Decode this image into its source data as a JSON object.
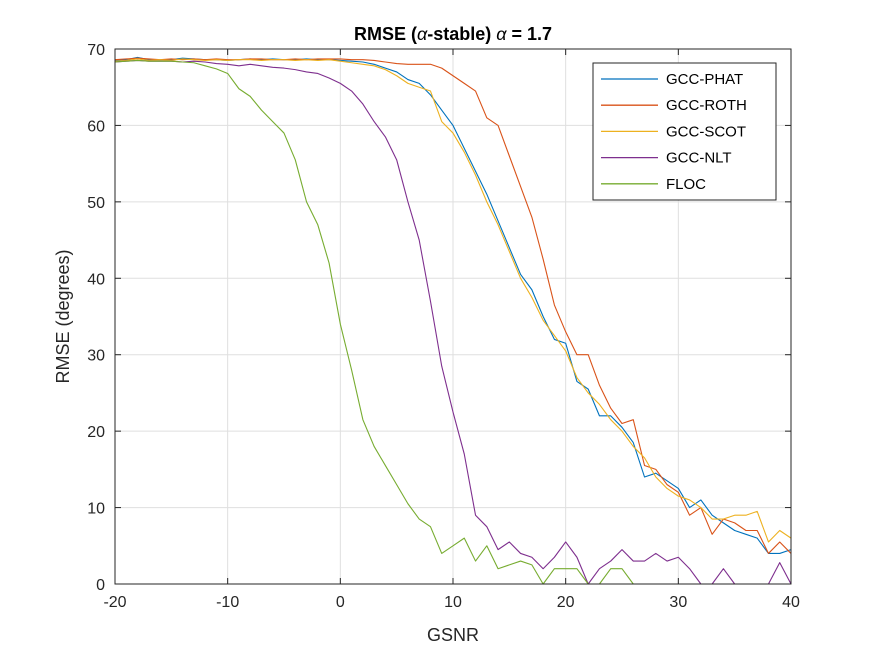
{
  "chart_data": {
    "type": "line",
    "title_prefix": "RMSE (",
    "title_symbol": "α",
    "title_mid": "-stable) ",
    "title_symbol2": "α",
    "title_suffix": " = 1.7",
    "xlabel": "GSNR",
    "ylabel": "RMSE (degrees)",
    "xlim": [
      -20,
      40
    ],
    "ylim": [
      0,
      70
    ],
    "xticks": [
      -20,
      -10,
      0,
      10,
      20,
      30,
      40
    ],
    "yticks": [
      0,
      10,
      20,
      30,
      40,
      50,
      60,
      70
    ],
    "grid": true,
    "legend_position": "top-right",
    "x": [
      -20,
      -19,
      -18,
      -17,
      -16,
      -15,
      -14,
      -13,
      -12,
      -11,
      -10,
      -9,
      -8,
      -7,
      -6,
      -5,
      -4,
      -3,
      -2,
      -1,
      0,
      1,
      2,
      3,
      4,
      5,
      6,
      7,
      8,
      9,
      10,
      11,
      12,
      13,
      14,
      15,
      16,
      17,
      18,
      19,
      20,
      21,
      22,
      23,
      24,
      25,
      26,
      27,
      28,
      29,
      30,
      31,
      32,
      33,
      34,
      35,
      36,
      37,
      38,
      39,
      40
    ],
    "series": [
      {
        "name": "GCC-PHAT",
        "color": "#0072BD",
        "values": [
          68.5,
          68.6,
          68.9,
          68.6,
          68.6,
          68.6,
          68.8,
          68.7,
          68.6,
          68.6,
          68.5,
          68.6,
          68.7,
          68.6,
          68.7,
          68.6,
          68.6,
          68.7,
          68.6,
          68.6,
          68.5,
          68.4,
          68.3,
          68.0,
          67.5,
          67.0,
          66.0,
          65.5,
          64.0,
          62.0,
          60.0,
          57.0,
          54.0,
          51.0,
          47.5,
          44.0,
          40.5,
          38.5,
          35.0,
          32.0,
          31.5,
          26.5,
          25.5,
          22.0,
          22.0,
          20.5,
          18.5,
          14.0,
          14.5,
          13.5,
          12.5,
          10.0,
          11.0,
          9.0,
          8.0,
          7.0,
          6.5,
          6.0,
          4.0,
          4.0,
          4.5
        ]
      },
      {
        "name": "GCC-ROTH",
        "color": "#D95319",
        "values": [
          68.6,
          68.7,
          68.8,
          68.7,
          68.6,
          68.7,
          68.6,
          68.7,
          68.6,
          68.7,
          68.6,
          68.6,
          68.7,
          68.7,
          68.6,
          68.6,
          68.7,
          68.6,
          68.7,
          68.7,
          68.7,
          68.6,
          68.6,
          68.5,
          68.3,
          68.1,
          68.0,
          68.0,
          68.0,
          67.5,
          66.5,
          65.5,
          64.5,
          61.0,
          60.0,
          56.0,
          52.0,
          48.0,
          42.5,
          36.5,
          33.0,
          30.0,
          30.0,
          26.0,
          23.0,
          21.0,
          21.5,
          15.5,
          15.0,
          13.0,
          12.0,
          9.0,
          10.0,
          6.5,
          8.5,
          8.0,
          7.0,
          7.0,
          4.0,
          5.5,
          4.0
        ]
      },
      {
        "name": "GCC-SCOT",
        "color": "#EDB120",
        "values": [
          68.4,
          68.5,
          68.7,
          68.5,
          68.6,
          68.5,
          68.7,
          68.6,
          68.5,
          68.6,
          68.5,
          68.6,
          68.6,
          68.5,
          68.6,
          68.6,
          68.5,
          68.6,
          68.5,
          68.6,
          68.4,
          68.2,
          68.0,
          67.8,
          67.3,
          66.5,
          65.5,
          65.0,
          64.5,
          60.5,
          59.0,
          56.5,
          53.5,
          50.0,
          47.0,
          43.5,
          40.0,
          37.5,
          34.5,
          32.5,
          30.5,
          27.0,
          25.0,
          23.5,
          21.5,
          20.0,
          18.0,
          16.5,
          14.0,
          12.5,
          11.5,
          11.0,
          10.0,
          8.5,
          8.5,
          9.0,
          9.0,
          9.5,
          5.5,
          7.0,
          6.0
        ]
      },
      {
        "name": "GCC-NLT",
        "color": "#7E2F8E",
        "values": [
          68.3,
          68.4,
          68.5,
          68.4,
          68.4,
          68.4,
          68.3,
          68.4,
          68.3,
          68.1,
          68.0,
          67.8,
          68.0,
          67.8,
          67.6,
          67.5,
          67.3,
          67.0,
          66.8,
          66.2,
          65.5,
          64.5,
          62.8,
          60.5,
          58.5,
          55.5,
          50.0,
          45.0,
          37.0,
          28.5,
          22.5,
          17.0,
          9.0,
          7.5,
          4.5,
          5.5,
          4.0,
          3.5,
          2.0,
          3.5,
          5.5,
          3.5,
          0.0,
          2.0,
          3.0,
          4.5,
          3.0,
          3.0,
          4.0,
          3.0,
          3.5,
          2.0,
          0.0,
          0.0,
          2.0,
          0.0,
          0.0,
          0.0,
          0.0,
          2.8,
          0.0
        ]
      },
      {
        "name": "FLOC",
        "color": "#77AC30",
        "values": [
          68.3,
          68.4,
          68.5,
          68.4,
          68.4,
          68.4,
          68.3,
          68.2,
          67.8,
          67.4,
          66.8,
          64.8,
          63.8,
          62.0,
          60.5,
          59.0,
          55.5,
          50.0,
          47.0,
          42.0,
          34.0,
          28.0,
          21.5,
          18.0,
          15.5,
          13.0,
          10.5,
          8.5,
          7.5,
          4.0,
          5.0,
          6.0,
          3.0,
          5.0,
          2.0,
          2.5,
          3.0,
          2.5,
          0.0,
          2.0,
          2.0,
          2.0,
          0.0,
          0.0,
          2.0,
          2.0,
          0.0,
          0.0,
          0.0,
          0.0,
          0.0,
          0.0,
          0.0,
          0.0,
          0.0,
          0.0,
          0.0,
          0.0,
          0.0,
          0.0,
          0.0
        ]
      }
    ]
  }
}
